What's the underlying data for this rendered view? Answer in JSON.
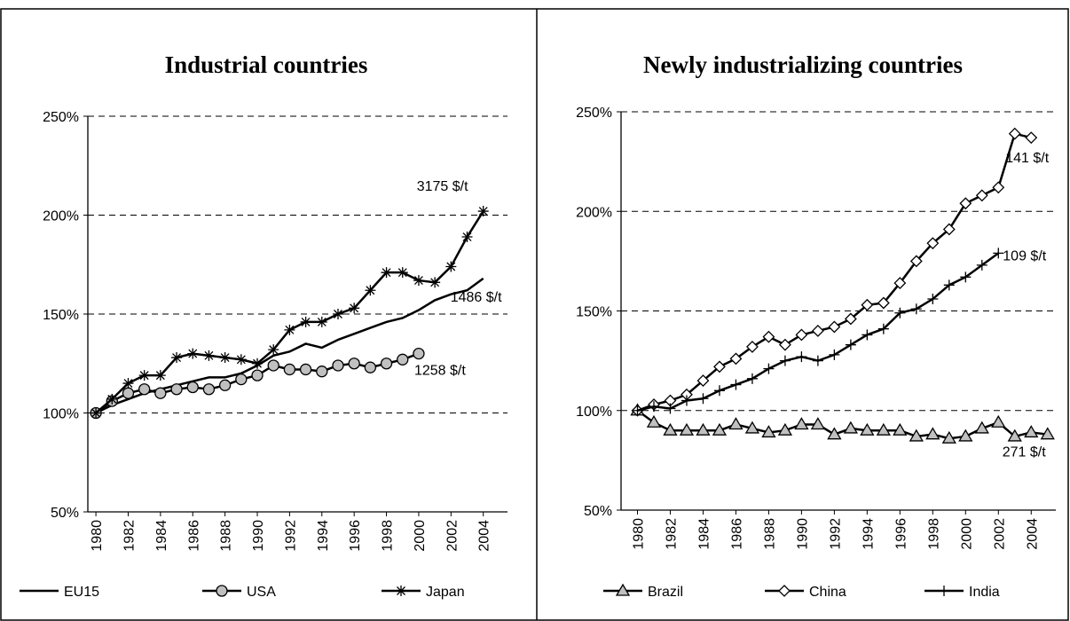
{
  "chart_data": [
    {
      "type": "line",
      "title": "Industrial countries",
      "x": [
        1980,
        1981,
        1982,
        1983,
        1984,
        1985,
        1986,
        1987,
        1988,
        1989,
        1990,
        1991,
        1992,
        1993,
        1994,
        1995,
        1996,
        1997,
        1998,
        1999,
        2000,
        2001,
        2002,
        2003,
        2004
      ],
      "xlim": [
        1979.5,
        2005.5
      ],
      "xticks": [
        1980,
        1982,
        1984,
        1986,
        1988,
        1990,
        1992,
        1994,
        1996,
        1998,
        2000,
        2002,
        2004
      ],
      "ylim": [
        50,
        250
      ],
      "yticks": [
        {
          "value": 50,
          "label": "50%"
        },
        {
          "value": 100,
          "label": "100%"
        },
        {
          "value": 150,
          "label": "150%"
        },
        {
          "value": 200,
          "label": "200%"
        },
        {
          "value": 250,
          "label": "250%"
        }
      ],
      "grid": true,
      "series": [
        {
          "name": "EU15",
          "color": "#000000",
          "marker": "none",
          "end_label": "1486 $/t",
          "values": [
            100,
            104,
            107,
            110,
            112,
            114,
            116,
            118,
            118,
            120,
            124,
            129,
            131,
            135,
            133,
            137,
            140,
            143,
            146,
            148,
            152,
            157,
            160,
            162,
            168
          ]
        },
        {
          "name": "USA",
          "color": "#000000",
          "marker": "circle",
          "end_label": "1258 $/t",
          "values": [
            100,
            106,
            110,
            112,
            110,
            112,
            113,
            112,
            114,
            117,
            119,
            124,
            122,
            122,
            121,
            124,
            125,
            123,
            125,
            127,
            130,
            null,
            null,
            null,
            null
          ]
        },
        {
          "name": "Japan",
          "color": "#000000",
          "marker": "star",
          "end_label": "3175 $/t",
          "values": [
            100,
            107,
            115,
            119,
            119,
            128,
            130,
            129,
            128,
            127,
            125,
            132,
            142,
            146,
            146,
            150,
            153,
            162,
            171,
            171,
            167,
            166,
            174,
            189,
            202
          ]
        }
      ]
    },
    {
      "type": "line",
      "title": "Newly industrializing countries",
      "x": [
        1980,
        1981,
        1982,
        1983,
        1984,
        1985,
        1986,
        1987,
        1988,
        1989,
        1990,
        1991,
        1992,
        1993,
        1994,
        1995,
        1996,
        1997,
        1998,
        1999,
        2000,
        2001,
        2002,
        2003,
        2004,
        2005
      ],
      "xlim": [
        1979,
        2005.5
      ],
      "xticks": [
        1980,
        1982,
        1984,
        1986,
        1988,
        1990,
        1992,
        1994,
        1996,
        1998,
        2000,
        2002,
        2004
      ],
      "ylim": [
        50,
        250
      ],
      "yticks": [
        {
          "value": 50,
          "label": "50%"
        },
        {
          "value": 100,
          "label": "100%"
        },
        {
          "value": 150,
          "label": "150%"
        },
        {
          "value": 200,
          "label": "200%"
        },
        {
          "value": 250,
          "label": "250%"
        }
      ],
      "grid": true,
      "series": [
        {
          "name": "Brazil",
          "color": "#000000",
          "marker": "triangle",
          "end_label": "271 $/t",
          "values": [
            100,
            94,
            90,
            90,
            90,
            90,
            93,
            91,
            89,
            90,
            93,
            93,
            88,
            91,
            90,
            90,
            90,
            87,
            88,
            86,
            87,
            91,
            94,
            87,
            89,
            88
          ]
        },
        {
          "name": "China",
          "color": "#000000",
          "marker": "diamond",
          "end_label": "141 $/t",
          "values": [
            100,
            103,
            105,
            108,
            115,
            122,
            126,
            132,
            137,
            133,
            138,
            140,
            142,
            146,
            153,
            154,
            164,
            175,
            184,
            191,
            204,
            208,
            212,
            239,
            237,
            null
          ]
        },
        {
          "name": "India",
          "color": "#000000",
          "marker": "plus",
          "end_label": "109 $/t",
          "values": [
            100,
            102,
            101,
            105,
            106,
            110,
            113,
            116,
            121,
            125,
            127,
            125,
            128,
            133,
            138,
            141,
            149,
            151,
            156,
            163,
            167,
            173,
            179,
            null,
            null,
            null
          ]
        }
      ]
    }
  ]
}
